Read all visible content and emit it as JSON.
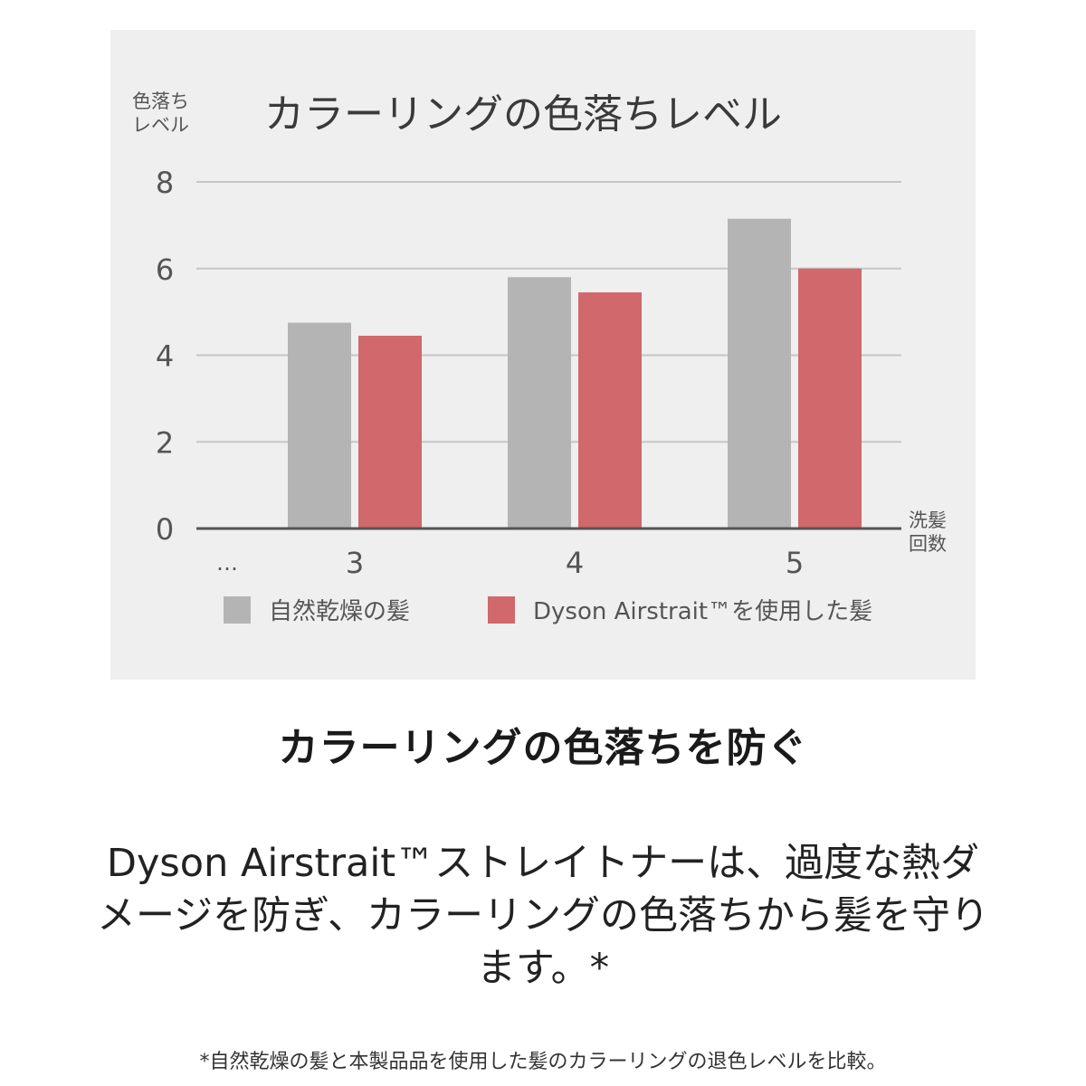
{
  "chart_data": {
    "type": "bar",
    "title": "カラーリングの色落ちレベル",
    "ylabel_lines": [
      "色落ち",
      "レベル"
    ],
    "xlabel_lines": [
      "洗髪",
      "回数"
    ],
    "x_ellipsis": "…",
    "categories": [
      "3",
      "4",
      "5"
    ],
    "yticks": [
      "0",
      "2",
      "4",
      "6",
      "8"
    ],
    "ylim": [
      0,
      8
    ],
    "grid": true,
    "legend_position": "bottom",
    "series": [
      {
        "name": "自然乾燥の髪",
        "color": "#b4b4b4",
        "values": [
          4.75,
          5.8,
          7.15
        ]
      },
      {
        "name": "Dyson Airstrait™を使用した髪",
        "color": "#d0686c",
        "values": [
          4.45,
          5.45,
          6.0
        ]
      }
    ]
  },
  "headline": "カラーリングの色落ちを防ぐ",
  "body_lines": [
    "Dyson Airstrait™ストレイトナーは、過度な熱ダ",
    "メージを防ぎ、カラーリングの色落ちから髪を守り",
    "ます。*"
  ],
  "footnote": "*自然乾燥の髪と本製品品を使用した髪のカラーリングの退色レベルを比較。"
}
